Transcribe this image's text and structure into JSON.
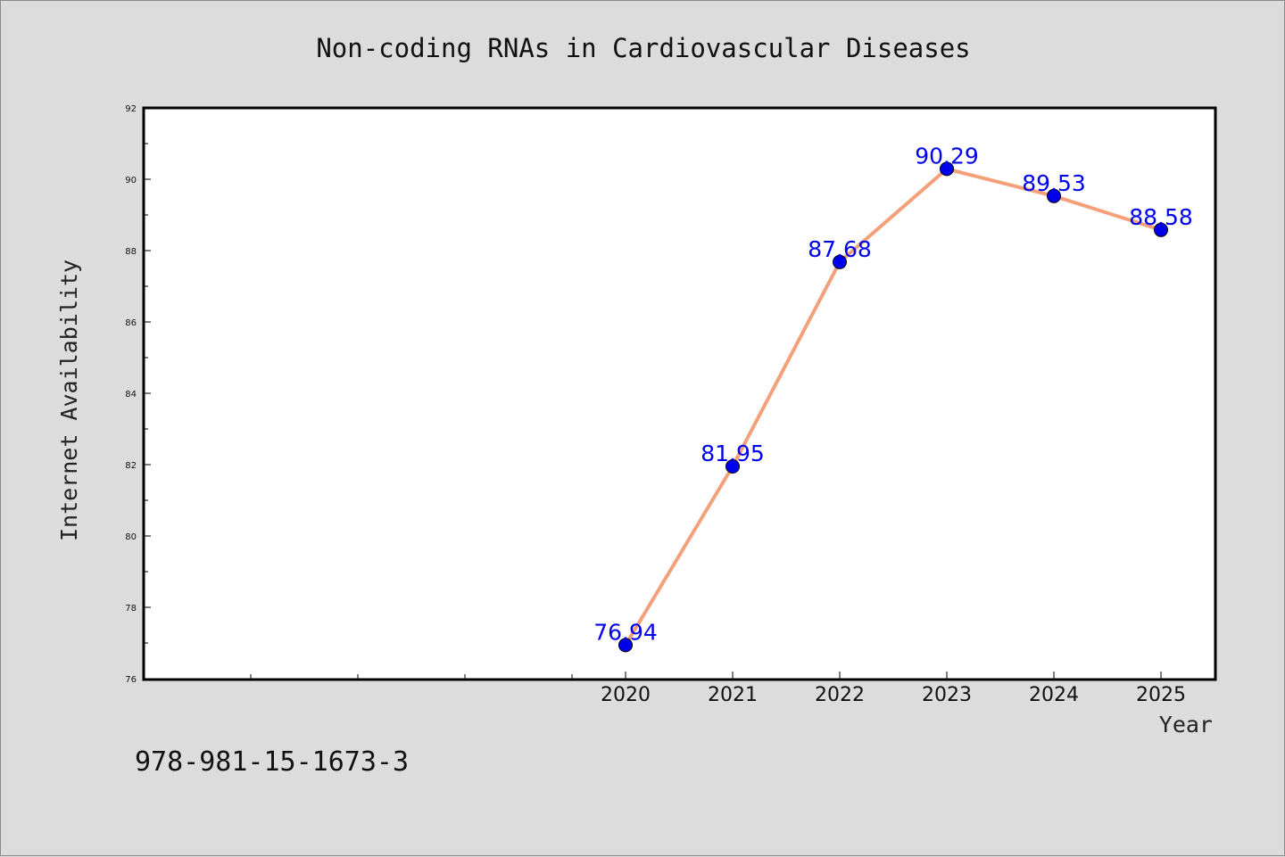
{
  "chart_data": {
    "type": "line",
    "title": "Non-coding RNAs in Cardiovascular Diseases",
    "xlabel": "Year",
    "ylabel": "Internet Availability",
    "x": [
      "2020",
      "2021",
      "2022",
      "2023",
      "2024",
      "2025"
    ],
    "series": [
      {
        "values": [
          76.94,
          81.95,
          87.68,
          90.29,
          89.53,
          88.58
        ]
      }
    ],
    "data_labels": [
      "76.94",
      "81.95",
      "87.68",
      "90.29",
      "89.53",
      "88.58"
    ],
    "ylim": [
      76,
      92
    ],
    "y_ticks": [
      76,
      78,
      80,
      82,
      84,
      86,
      88,
      90,
      92
    ],
    "y_tick_labels": [
      "76",
      "78",
      "80",
      "82",
      "84",
      "86",
      "88",
      "90",
      "92"
    ],
    "grid": false,
    "legend": "none",
    "colors": {
      "line": "#f4a07a",
      "marker": "#0000ee",
      "data_label": "#0000ee",
      "plot_background": "#ffffff",
      "figure_background": "#dcdcdc"
    }
  },
  "footer": {
    "isbn": "978-981-15-1673-3"
  }
}
